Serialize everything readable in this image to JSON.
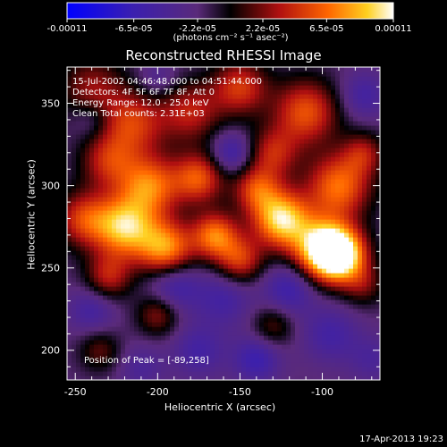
{
  "chart_data": {
    "type": "heatmap",
    "title": "Reconstructed RHESSI Image",
    "xlabel": "Heliocentric X (arcsec)",
    "ylabel": "Heliocentric Y (arcsec)",
    "xlim": [
      -255,
      -65
    ],
    "ylim": [
      182,
      372
    ],
    "x_ticks": [
      "-250",
      "-200",
      "-150",
      "-100"
    ],
    "x_tick_values": [
      -250,
      -200,
      -150,
      -100
    ],
    "y_ticks": [
      "200",
      "250",
      "300",
      "350"
    ],
    "y_tick_values": [
      200,
      250,
      300,
      350
    ],
    "colorbar": {
      "min": -0.00011,
      "max": 0.00011,
      "tick_labels": [
        "-0.00011",
        "-6.5e-05",
        "-2.2e-05",
        "2.2e-05",
        "6.5e-05",
        "0.00011"
      ],
      "tick_values": [
        -0.00011,
        -6.5e-05,
        -2.2e-05,
        2.2e-05,
        6.5e-05,
        0.00011
      ],
      "units": "(photons cm⁻² s⁻¹ asec⁻²)"
    },
    "annotations": {
      "time_range": "15-Jul-2002 04:46:48.000 to 04:51:44.000",
      "detectors": "Detectors: 4F 5F 6F 7F 8F, Att 0",
      "energy": "Energy Range: 12.0 - 25.0 keV",
      "clean": "Clean    Total counts: 2.31E+03",
      "peak": "Position of Peak = [-89,258]"
    },
    "blobs": [
      {
        "x": -240,
        "y": 360,
        "v": 4e-05,
        "s": 14
      },
      {
        "x": -215,
        "y": 338,
        "v": 6e-05,
        "s": 14
      },
      {
        "x": -180,
        "y": 345,
        "v": 5e-05,
        "s": 13
      },
      {
        "x": -150,
        "y": 360,
        "v": 6e-05,
        "s": 12
      },
      {
        "x": -110,
        "y": 345,
        "v": 7e-05,
        "s": 14
      },
      {
        "x": -130,
        "y": 320,
        "v": 5e-05,
        "s": 11
      },
      {
        "x": -230,
        "y": 315,
        "v": 5e-05,
        "s": 12
      },
      {
        "x": -205,
        "y": 300,
        "v": 8e-05,
        "s": 13
      },
      {
        "x": -175,
        "y": 305,
        "v": 7e-05,
        "s": 11
      },
      {
        "x": -140,
        "y": 298,
        "v": 6e-05,
        "s": 10
      },
      {
        "x": -90,
        "y": 300,
        "v": 8e-05,
        "s": 14
      },
      {
        "x": -75,
        "y": 320,
        "v": 4e-05,
        "s": 9
      },
      {
        "x": -245,
        "y": 280,
        "v": 6e-05,
        "s": 12
      },
      {
        "x": -220,
        "y": 275,
        "v": 0.0001,
        "s": 13
      },
      {
        "x": -195,
        "y": 262,
        "v": 9e-05,
        "s": 12
      },
      {
        "x": -165,
        "y": 270,
        "v": 8e-05,
        "s": 10
      },
      {
        "x": -125,
        "y": 280,
        "v": 0.00011,
        "s": 12
      },
      {
        "x": -100,
        "y": 262,
        "v": 0.00011,
        "s": 13
      },
      {
        "x": -89,
        "y": 258,
        "v": 0.00011,
        "s": 11
      },
      {
        "x": -150,
        "y": 255,
        "v": 6e-05,
        "s": 10
      },
      {
        "x": -230,
        "y": 245,
        "v": 5e-05,
        "s": 10
      },
      {
        "x": -75,
        "y": 240,
        "v": 3e-05,
        "s": 9
      },
      {
        "x": -200,
        "y": 222,
        "v": 4e-05,
        "s": 9
      },
      {
        "x": -130,
        "y": 215,
        "v": 3e-05,
        "s": 9
      },
      {
        "x": -235,
        "y": 200,
        "v": 3e-05,
        "s": 9
      },
      {
        "x": -190,
        "y": 240,
        "v": -5e-05,
        "s": 11
      },
      {
        "x": -160,
        "y": 232,
        "v": -4e-05,
        "s": 12
      },
      {
        "x": -120,
        "y": 238,
        "v": -5e-05,
        "s": 11
      },
      {
        "x": -240,
        "y": 225,
        "v": -4e-05,
        "s": 10
      },
      {
        "x": -95,
        "y": 210,
        "v": -4e-05,
        "s": 12
      },
      {
        "x": -175,
        "y": 200,
        "v": -4e-05,
        "s": 11
      },
      {
        "x": -140,
        "y": 195,
        "v": -5e-05,
        "s": 10
      },
      {
        "x": -210,
        "y": 190,
        "v": -3e-05,
        "s": 10
      },
      {
        "x": -70,
        "y": 195,
        "v": -3e-05,
        "s": 10
      },
      {
        "x": -155,
        "y": 320,
        "v": -5e-05,
        "s": 9
      },
      {
        "x": -240,
        "y": 340,
        "v": -3e-05,
        "s": 8
      },
      {
        "x": -75,
        "y": 355,
        "v": -4e-05,
        "s": 10
      },
      {
        "x": -200,
        "y": 365,
        "v": -3e-05,
        "s": 8
      }
    ],
    "background": -2e-05
  },
  "footer": {
    "date": "17-Apr-2013 19:23"
  }
}
